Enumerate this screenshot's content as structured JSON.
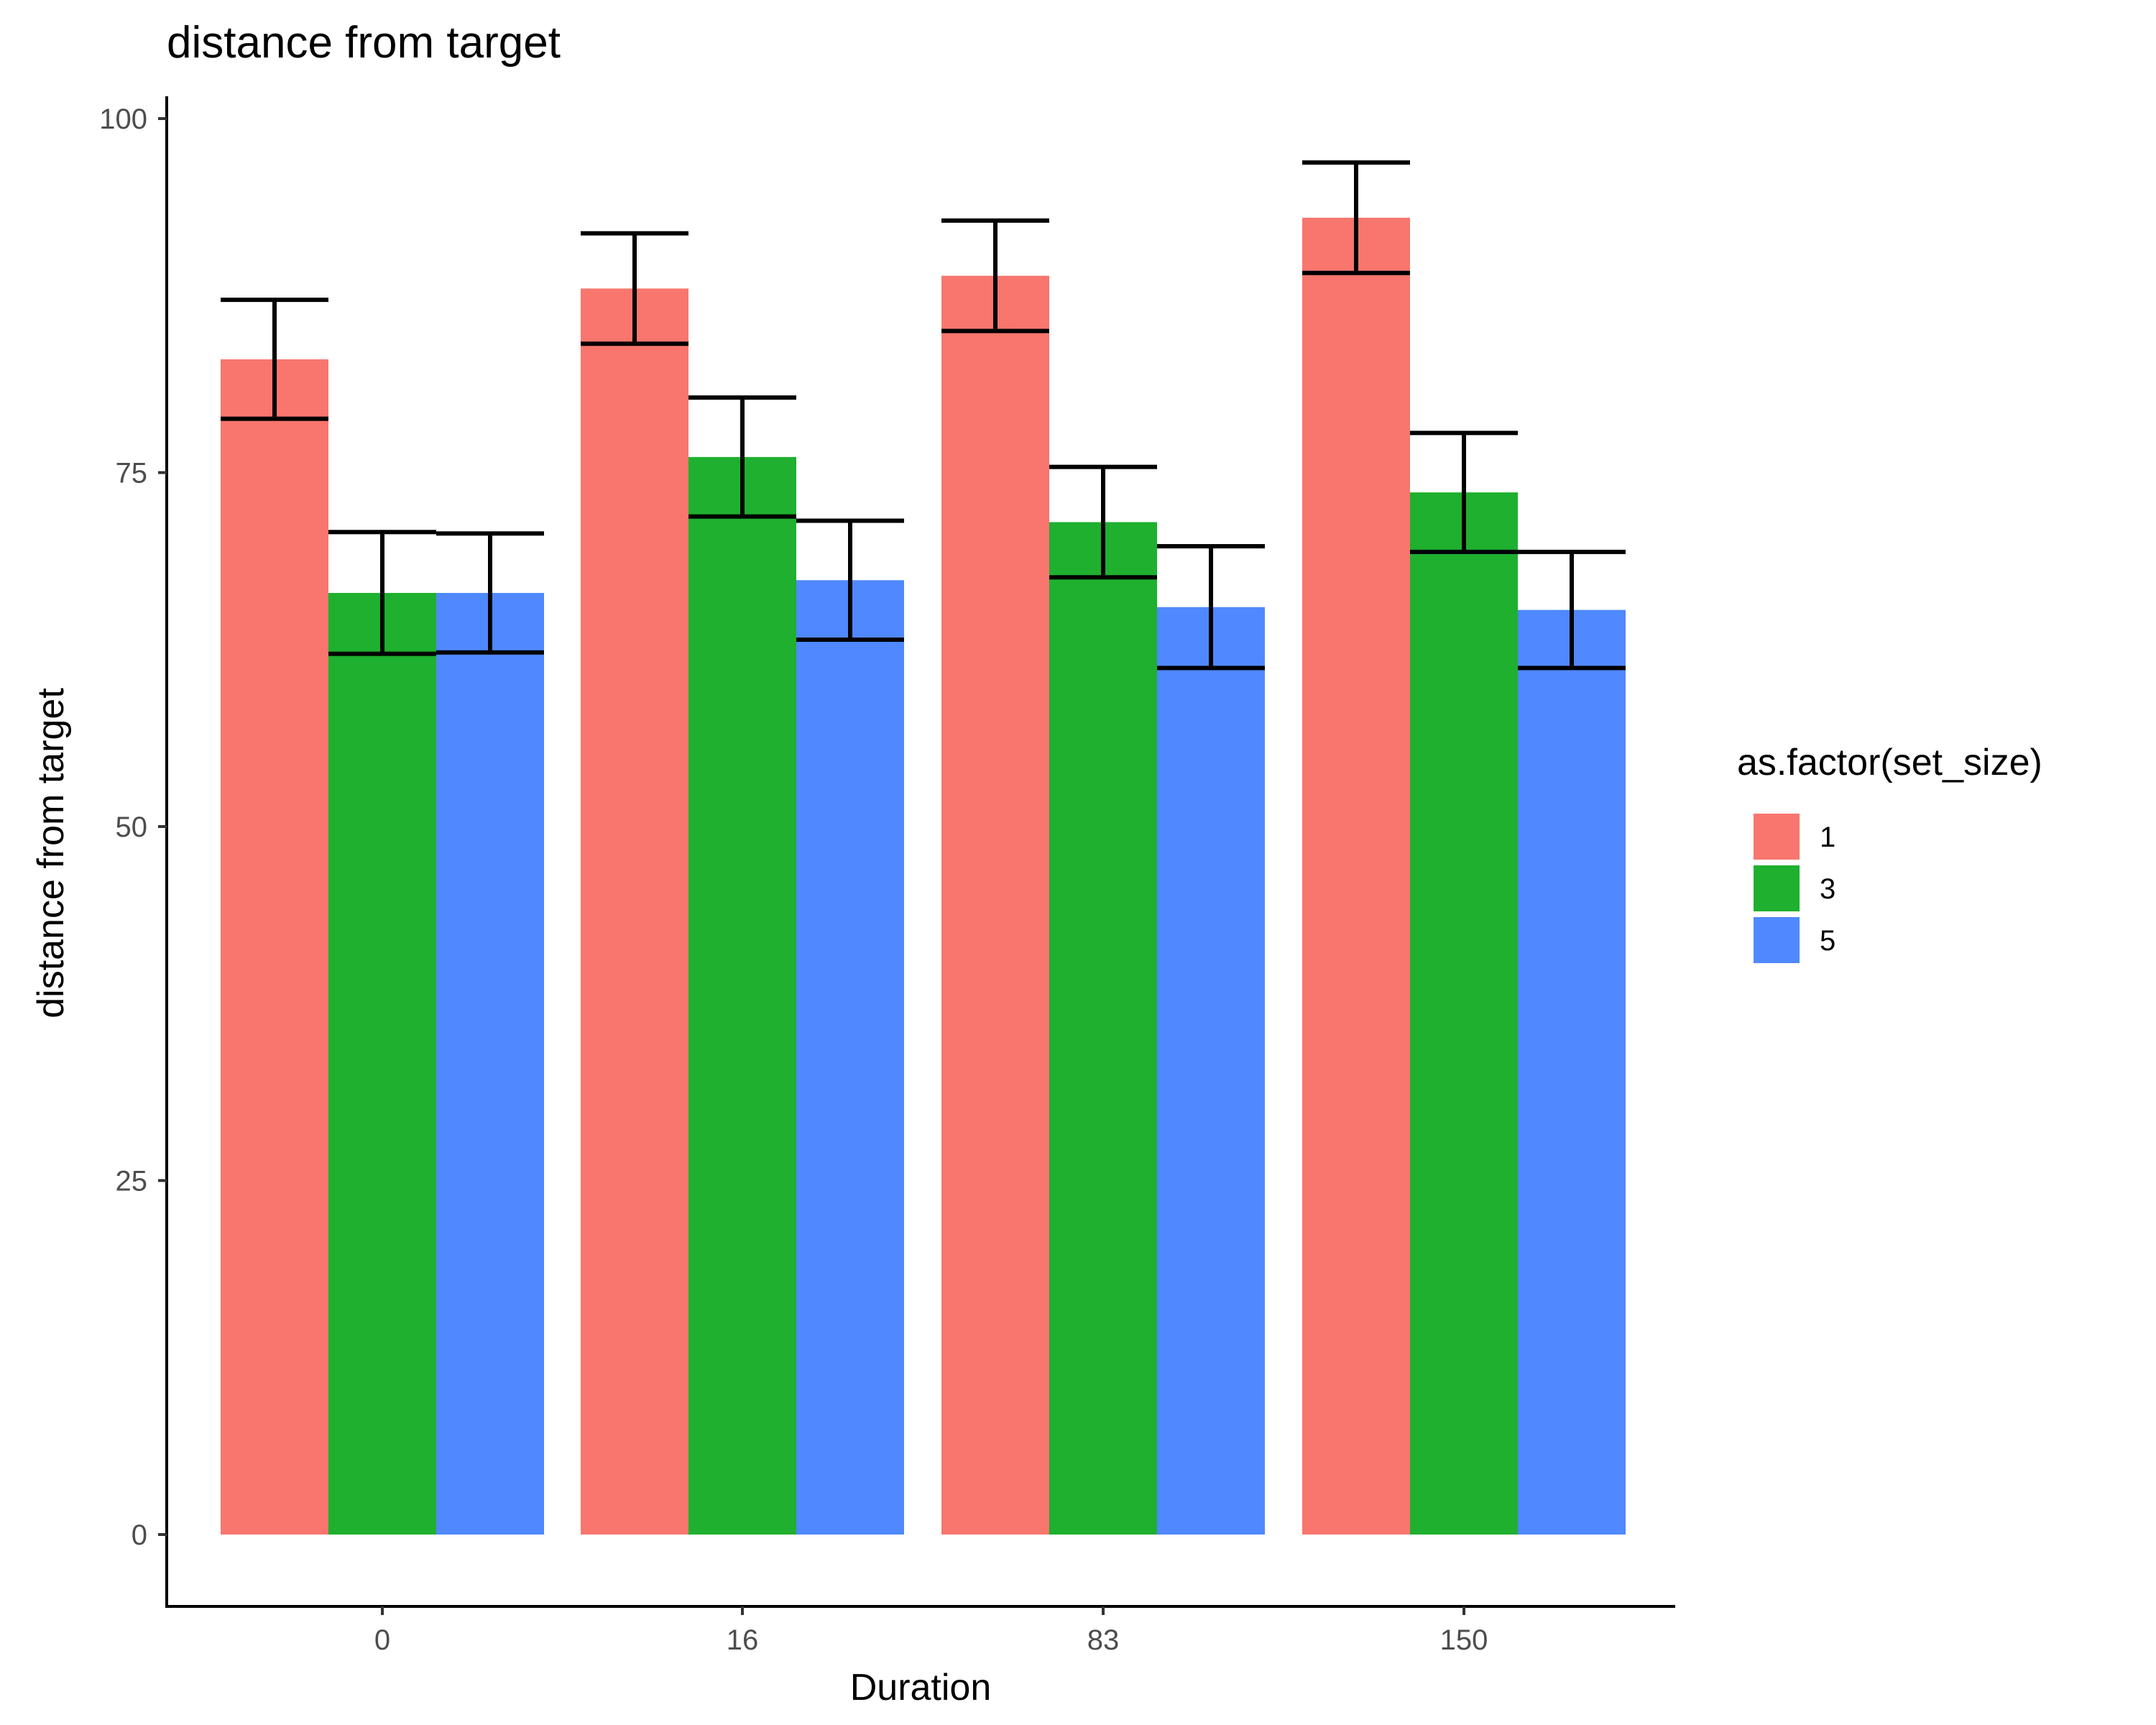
{
  "chart_data": {
    "type": "bar",
    "title": "distance from target",
    "xlabel": "Duration",
    "ylabel": "distance from target",
    "categories": [
      "0",
      "16",
      "83",
      "150"
    ],
    "ylim": [
      -5,
      102
    ],
    "yticks": [
      0,
      25,
      50,
      75,
      100
    ],
    "legend": {
      "title": "as.factor(set_size)",
      "placement": "right"
    },
    "series": [
      {
        "name": "1",
        "color": "#F8766D",
        "values": [
          83.0,
          88.0,
          88.9,
          93.0
        ],
        "err": [
          4.2,
          3.9,
          3.9,
          3.9
        ]
      },
      {
        "name": "3",
        "color": "#1EB02E",
        "values": [
          66.5,
          76.1,
          71.5,
          73.6
        ],
        "err": [
          4.3,
          4.2,
          3.9,
          4.2
        ]
      },
      {
        "name": "5",
        "color": "#5088FF",
        "values": [
          66.5,
          67.4,
          65.5,
          65.3
        ],
        "err": [
          4.2,
          4.2,
          4.3,
          4.1
        ]
      }
    ],
    "grid": false
  }
}
